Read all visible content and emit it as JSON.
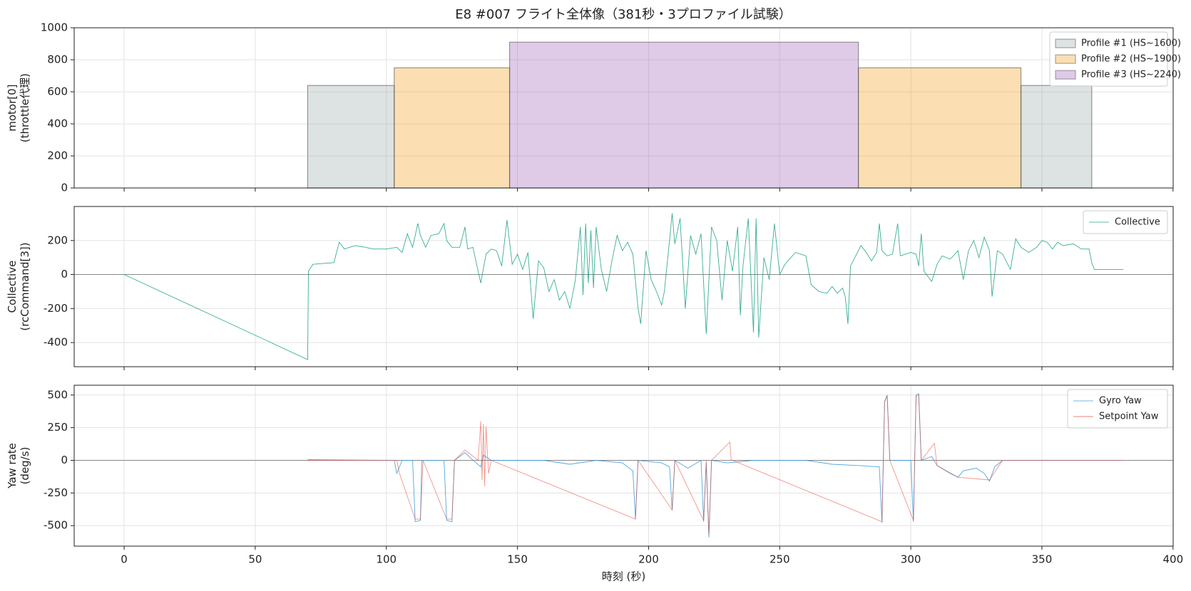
{
  "title": "E8 #007 フライト全体像（381秒・3プロファイル試験）",
  "chart_data": [
    {
      "type": "area",
      "ylabel": [
        "motor[0]",
        "(throttle代理)"
      ],
      "xlim": [
        -19.05,
        400.05
      ],
      "xticks": [
        0,
        50,
        100,
        150,
        200,
        250,
        300,
        350,
        400
      ],
      "ylim": [
        0,
        1000
      ],
      "yticks": [
        0,
        200,
        400,
        600,
        800,
        1000
      ],
      "grid": true,
      "legend": "upper right",
      "series": [
        {
          "name": "Profile #1 (HS~1600)",
          "color": "#95a5a6",
          "segments": [
            {
              "x": [
                70,
                103
              ],
              "value": 640
            },
            {
              "x": [
                342,
                369
              ],
              "value": 640
            }
          ]
        },
        {
          "name": "Profile #2 (HS~1900)",
          "color": "#f39c12",
          "segments": [
            {
              "x": [
                103,
                147
              ],
              "value": 750
            },
            {
              "x": [
                280,
                342
              ],
              "value": 750
            }
          ]
        },
        {
          "name": "Profile #3 (HS~2240)",
          "color": "#9b59b6",
          "segments": [
            {
              "x": [
                147,
                280
              ],
              "value": 910
            }
          ]
        }
      ]
    },
    {
      "type": "line",
      "ylabel": [
        "Collective",
        "(rcCommand[3])"
      ],
      "xlim": [
        -19.05,
        400.05
      ],
      "xticks": [
        0,
        50,
        100,
        150,
        200,
        250,
        300,
        350,
        400
      ],
      "ylim": [
        -542,
        400
      ],
      "yticks": [
        -400,
        -200,
        0,
        200
      ],
      "grid": true,
      "hline": 0,
      "legend": "upper right",
      "series": [
        {
          "name": "Collective",
          "color": "#16a085",
          "x": [
            0,
            70,
            70.3,
            72,
            80,
            82,
            84,
            88,
            92,
            95,
            100,
            104,
            106,
            108,
            110,
            112,
            113,
            115,
            117,
            120,
            122,
            123,
            125,
            128,
            130,
            131,
            133,
            136,
            138,
            140,
            142,
            144,
            146,
            148,
            150,
            152,
            154,
            156,
            158,
            160,
            162,
            164,
            166,
            168,
            170,
            172,
            174,
            175,
            176,
            177,
            178,
            179,
            180,
            182,
            184,
            186,
            188,
            190,
            192,
            194,
            196,
            197,
            199,
            201,
            203,
            205,
            206,
            208,
            209,
            210,
            212,
            214,
            216,
            218,
            220,
            222,
            224,
            226,
            228,
            230,
            232,
            234,
            235,
            236,
            238,
            240,
            241,
            242,
            244,
            246,
            248,
            250,
            252,
            256,
            260,
            262,
            265,
            268,
            270,
            272,
            274,
            275,
            276,
            277,
            279,
            281,
            283,
            285,
            287,
            288,
            289,
            291,
            293,
            295,
            296,
            300,
            302,
            303,
            304,
            305,
            308,
            310,
            312,
            315,
            318,
            320,
            322,
            324,
            326,
            328,
            330,
            331,
            333,
            335,
            338,
            340,
            342,
            345,
            348,
            350,
            352,
            354,
            356,
            358,
            362,
            365,
            368,
            369,
            370,
            381
          ],
          "values": [
            0,
            -500,
            20,
            60,
            70,
            190,
            150,
            170,
            160,
            150,
            150,
            160,
            130,
            240,
            160,
            300,
            230,
            160,
            230,
            240,
            300,
            200,
            160,
            160,
            280,
            150,
            160,
            -50,
            120,
            150,
            140,
            50,
            320,
            60,
            120,
            30,
            130,
            -260,
            80,
            40,
            -100,
            -30,
            -150,
            -100,
            -200,
            -40,
            280,
            -120,
            300,
            -50,
            260,
            -80,
            280,
            30,
            -100,
            80,
            230,
            140,
            190,
            120,
            -200,
            -290,
            140,
            -30,
            -100,
            -180,
            -100,
            200,
            360,
            180,
            330,
            -200,
            230,
            120,
            240,
            -350,
            280,
            200,
            -150,
            200,
            20,
            280,
            -240,
            50,
            330,
            -340,
            330,
            -370,
            100,
            -30,
            300,
            0,
            60,
            130,
            110,
            -60,
            -100,
            -110,
            -70,
            -110,
            -80,
            -130,
            -290,
            50,
            110,
            170,
            130,
            80,
            130,
            300,
            140,
            110,
            120,
            300,
            110,
            130,
            120,
            50,
            240,
            20,
            -40,
            60,
            110,
            90,
            140,
            -30,
            140,
            200,
            100,
            220,
            140,
            -130,
            140,
            120,
            30,
            210,
            160,
            130,
            160,
            200,
            190,
            150,
            190,
            170,
            180,
            150,
            150,
            70,
            30,
            30
          ]
        }
      ]
    },
    {
      "type": "line",
      "ylabel": [
        "Yaw rate",
        "(deg/s)"
      ],
      "xlabel": "時刻 (秒)",
      "xlim": [
        -19.05,
        400.05
      ],
      "xticks": [
        0,
        50,
        100,
        150,
        200,
        250,
        300,
        350,
        400
      ],
      "ylim": [
        -657,
        575
      ],
      "yticks": [
        -500,
        -250,
        0,
        250,
        500
      ],
      "grid": true,
      "hline": 0,
      "legend": "upper right",
      "series": [
        {
          "name": "Gyro Yaw",
          "color": "#3498db",
          "x": [
            70,
            100,
            103,
            104,
            106,
            110,
            111,
            113,
            113.5,
            122,
            123,
            125,
            126,
            130,
            132,
            136,
            137,
            140,
            150,
            160,
            170,
            180,
            190,
            194,
            195,
            196,
            205,
            208,
            209,
            210,
            215,
            220,
            221,
            222,
            223,
            224,
            230,
            240,
            260,
            270,
            280,
            288,
            289,
            290,
            291,
            292,
            300,
            301,
            302,
            303,
            304,
            308,
            310,
            315,
            318,
            320,
            325,
            328,
            330,
            332,
            335,
            340,
            360,
            381
          ],
          "values": [
            5,
            0,
            0,
            -100,
            0,
            0,
            -470,
            -460,
            0,
            0,
            -460,
            -470,
            0,
            60,
            20,
            -50,
            40,
            0,
            0,
            0,
            -30,
            0,
            -20,
            -80,
            -450,
            0,
            -20,
            -50,
            -380,
            0,
            -60,
            0,
            -470,
            -20,
            -590,
            0,
            -20,
            0,
            0,
            -30,
            -40,
            -50,
            -480,
            450,
            500,
            0,
            0,
            -470,
            500,
            510,
            0,
            30,
            -40,
            -100,
            -130,
            -80,
            -60,
            -100,
            -160,
            -50,
            0,
            0,
            0,
            0
          ]
        },
        {
          "name": "Setpoint Yaw",
          "color": "#e74c3c",
          "x": [
            70,
            104,
            105,
            111,
            113,
            114,
            123,
            125,
            126,
            130,
            135,
            136,
            136.5,
            137,
            137.5,
            138,
            139,
            140,
            195,
            196,
            209,
            210,
            221,
            222,
            223,
            224,
            231,
            231.5,
            232,
            289,
            290,
            291,
            292,
            301,
            302,
            303,
            304,
            309,
            310,
            318,
            330,
            335,
            381
          ],
          "values": [
            0,
            0,
            -100,
            -450,
            -450,
            0,
            -450,
            -450,
            0,
            80,
            0,
            300,
            -150,
            280,
            -200,
            260,
            -100,
            0,
            -450,
            0,
            -380,
            0,
            -460,
            0,
            -570,
            0,
            140,
            0,
            0,
            -470,
            450,
            490,
            0,
            -460,
            490,
            500,
            0,
            130,
            -40,
            -130,
            -150,
            0,
            0
          ]
        }
      ]
    }
  ]
}
